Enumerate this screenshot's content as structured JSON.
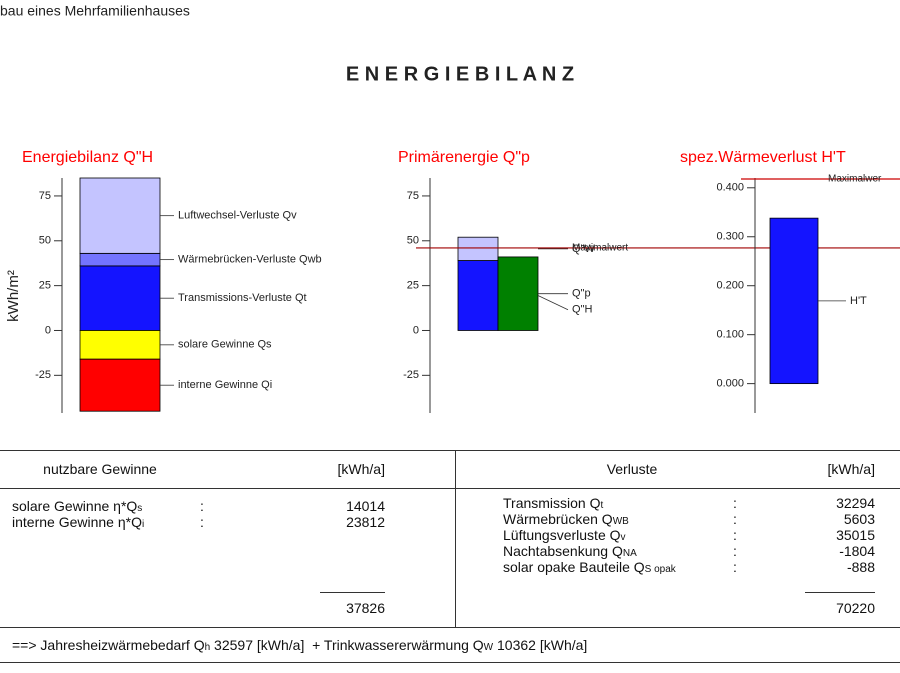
{
  "header": {
    "text": "bau eines Mehrfamilienhauses",
    "title": "E N E R G I E B I L A N Z"
  },
  "chart_data": [
    {
      "type": "stacked_bar",
      "title": "Energiebilanz Q\"H",
      "ylabel": "kWh/m²",
      "ylim": [
        -46,
        85
      ],
      "yticks": [
        -25,
        0,
        25,
        50,
        75
      ],
      "series": [
        {
          "name": "Transmissions-Verluste Qt",
          "color": "#1414ff",
          "values": [
            36
          ]
        },
        {
          "name": "Wärmebrücken-Verluste Qwb",
          "color": "#7474ff",
          "values": [
            7
          ]
        },
        {
          "name": "Luftwechsel-Verluste Qv",
          "color": "#c4c4ff",
          "values": [
            42
          ]
        },
        {
          "name": "solare Gewinne Qs",
          "color": "#ffff00",
          "values": [
            -16
          ]
        },
        {
          "name": "interne Gewinne Qi",
          "color": "#ff0000",
          "values": [
            -29
          ]
        }
      ]
    },
    {
      "type": "stacked_bar",
      "title": "Primärenergie Q\"p",
      "ylim": [
        -46,
        85
      ],
      "yticks": [
        -25,
        0,
        25,
        50,
        75
      ],
      "series": [
        {
          "name": "Q\"H",
          "color": "#1414ff",
          "values": [
            39
          ],
          "stack": 0
        },
        {
          "name": "Q\"W",
          "color": "#c4c4ff",
          "values": [
            13
          ],
          "stack": 0
        },
        {
          "name": "Q\"p",
          "color": "#008000",
          "values": [
            41
          ],
          "stack": 1
        }
      ],
      "reference_line": {
        "value": 46,
        "label": "Maximalwert",
        "color": "#a00000"
      }
    },
    {
      "type": "bar",
      "title": "spez.Wärmeverlust H'T",
      "ylim": [
        -0.06,
        0.42
      ],
      "yticks": [
        {
          "value": 0,
          "label": "0.000"
        },
        {
          "value": 0.1,
          "label": "0.100"
        },
        {
          "value": 0.2,
          "label": "0.200"
        },
        {
          "value": 0.3,
          "label": "0.300"
        },
        {
          "value": 0.4,
          "label": "0.400"
        }
      ],
      "series": [
        {
          "name": "H'T",
          "color": "#1414ff",
          "values": [
            0.338
          ]
        }
      ],
      "reference_line": {
        "value": 0.418,
        "label": "Maximalwer",
        "color": "#cc0000"
      }
    }
  ],
  "table": {
    "left": {
      "header": [
        "nutzbare Gewinne",
        "[kWh/a]"
      ],
      "rows": [
        {
          "label": "solare Gewinne η*Q",
          "sub": "s",
          "sep": ":",
          "value": 14014
        },
        {
          "label": "interne Gewinne η*Q",
          "sub": "i",
          "sep": ":",
          "value": 23812
        }
      ],
      "total": 37826
    },
    "right": {
      "header": [
        "Verluste",
        "[kWh/a]"
      ],
      "rows": [
        {
          "label": "Transmission Q",
          "sub": "t",
          "sep": ":",
          "value": 32294
        },
        {
          "label": "Wärmebrücken Q",
          "sub": "WB",
          "sep": ":",
          "value": 5603
        },
        {
          "label": "Lüftungsverluste Q",
          "sub": "v",
          "sep": ":",
          "value": 35015
        },
        {
          "label": "Nachtabsenkung Q",
          "sub": "NA",
          "sep": ":",
          "value": -1804
        },
        {
          "label": "solar opake Bauteile Q",
          "sub": "S opak",
          "sep": ":",
          "value": -888
        }
      ],
      "total": 70220
    }
  },
  "footer": [
    {
      "text": "==> Jahresheizwärmebedarf Q"
    },
    {
      "sub": "h"
    },
    {
      "text": " 32597 [kWh/a]  + Trinkwassererwärmung Q"
    },
    {
      "sub": "W"
    },
    {
      "text": " 10362 [kWh/a]"
    }
  ]
}
